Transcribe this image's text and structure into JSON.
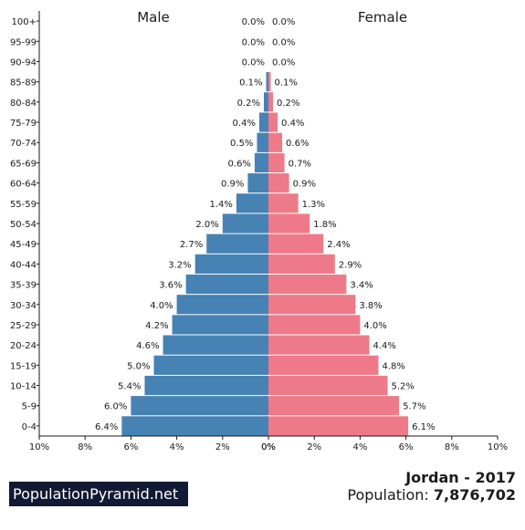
{
  "chart_data": {
    "type": "bar",
    "orientation": "horizontal-diverging",
    "categories": [
      "100+",
      "95-99",
      "90-94",
      "85-89",
      "80-84",
      "75-79",
      "70-74",
      "65-69",
      "60-64",
      "55-59",
      "50-54",
      "45-49",
      "40-44",
      "35-39",
      "30-34",
      "25-29",
      "20-24",
      "15-19",
      "10-14",
      "5-9",
      "0-4"
    ],
    "series": [
      {
        "name": "Male",
        "color": "#4682b4",
        "values": [
          0.0,
          0.0,
          0.0,
          0.1,
          0.2,
          0.4,
          0.5,
          0.6,
          0.9,
          1.4,
          2.0,
          2.7,
          3.2,
          3.6,
          4.0,
          4.2,
          4.6,
          5.0,
          5.4,
          6.0,
          6.4
        ],
        "labels": [
          "0.0%",
          "0.0%",
          "0.0%",
          "0.1%",
          "0.2%",
          "0.4%",
          "0.5%",
          "0.6%",
          "0.9%",
          "1.4%",
          "2.0%",
          "2.7%",
          "3.2%",
          "3.6%",
          "4.0%",
          "4.2%",
          "4.6%",
          "5.0%",
          "5.4%",
          "6.0%",
          "6.4%"
        ]
      },
      {
        "name": "Female",
        "color": "#ee7a89",
        "values": [
          0.0,
          0.0,
          0.0,
          0.1,
          0.2,
          0.4,
          0.6,
          0.7,
          0.9,
          1.3,
          1.8,
          2.4,
          2.9,
          3.4,
          3.8,
          4.0,
          4.4,
          4.8,
          5.2,
          5.7,
          6.1
        ],
        "labels": [
          "0.0%",
          "0.0%",
          "0.0%",
          "0.1%",
          "0.2%",
          "0.4%",
          "0.6%",
          "0.7%",
          "0.9%",
          "1.3%",
          "1.8%",
          "2.4%",
          "2.9%",
          "3.4%",
          "3.8%",
          "4.0%",
          "4.4%",
          "4.8%",
          "5.2%",
          "5.7%",
          "6.1%"
        ]
      }
    ],
    "xlim": [
      -10,
      10
    ],
    "xticks": [
      "10%",
      "8%",
      "6%",
      "4%",
      "2%",
      "0%",
      "0%",
      "2%",
      "4%",
      "6%",
      "8%",
      "10%"
    ],
    "xlabel": "",
    "ylabel": "",
    "grid": false
  },
  "footer": {
    "site": "PopulationPyramid.net",
    "country_year": "Jordan - 2017",
    "population_label": "Population:",
    "population_value": "7,876,702"
  }
}
